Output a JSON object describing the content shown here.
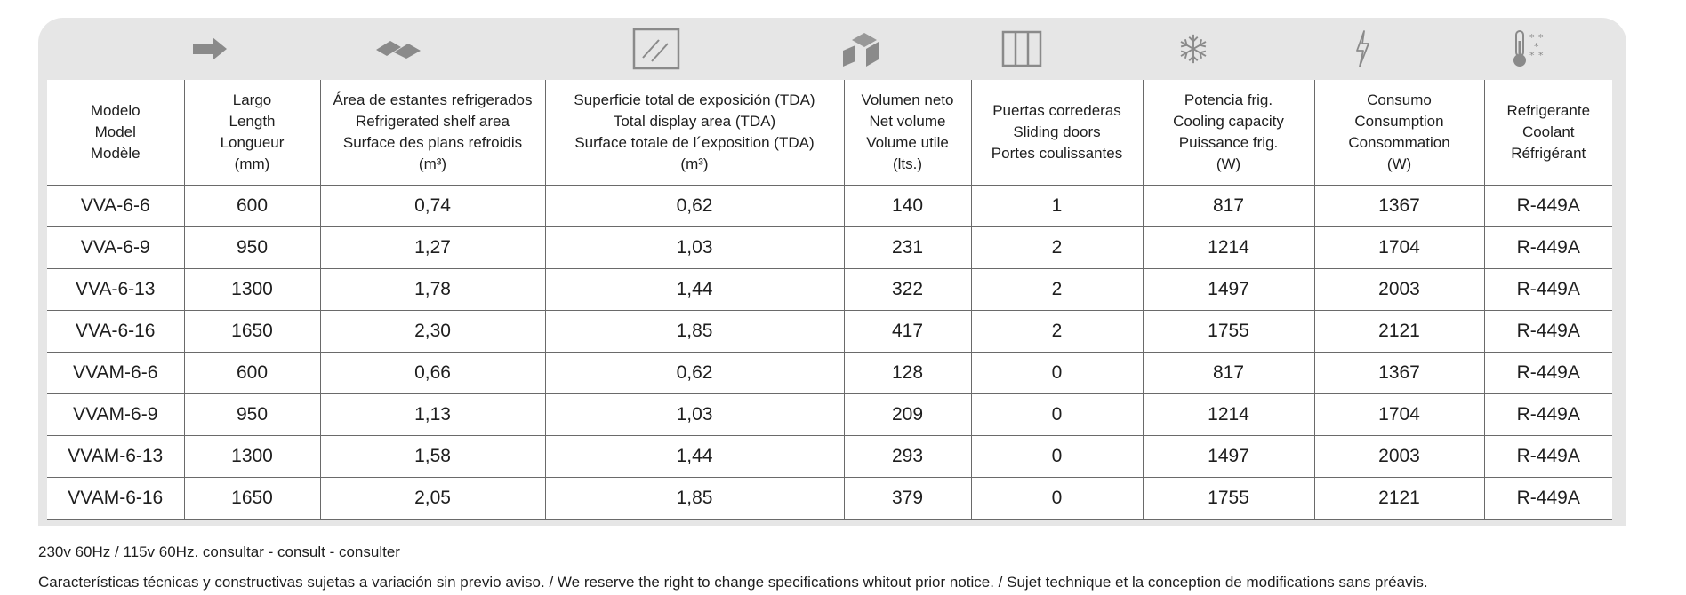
{
  "icons": [
    {
      "name": "arrow-right-icon"
    },
    {
      "name": "shelf-icon"
    },
    {
      "name": "display-window-icon"
    },
    {
      "name": "cube-volume-icon"
    },
    {
      "name": "sliding-doors-icon"
    },
    {
      "name": "snowflake-icon"
    },
    {
      "name": "lightning-icon"
    },
    {
      "name": "thermometer-icon"
    }
  ],
  "headers": [
    [
      "Modelo",
      "Model",
      "Modèle"
    ],
    [
      "Largo",
      "Length",
      "Longueur",
      "(mm)"
    ],
    [
      "Área de estantes refrigerados",
      "Refrigerated shelf area",
      "Surface des plans refroidis",
      "(m³)"
    ],
    [
      "Superficie total de exposición (TDA)",
      "Total display area (TDA)",
      "Surface totale de l´exposition (TDA)",
      "(m³)"
    ],
    [
      "Volumen neto",
      "Net volume",
      "Volume utile",
      "(lts.)"
    ],
    [
      "Puertas correderas",
      "Sliding doors",
      "Portes coulissantes"
    ],
    [
      "Potencia frig.",
      "Cooling capacity",
      "Puissance frig.",
      "(W)"
    ],
    [
      "Consumo",
      "Consumption",
      "Consommation",
      "(W)"
    ],
    [
      "Refrigerante",
      "Coolant",
      "Réfrigérant"
    ]
  ],
  "rows": [
    [
      "VVA-6-6",
      "600",
      "0,74",
      "0,62",
      "140",
      "1",
      "817",
      "1367",
      "R-449A"
    ],
    [
      "VVA-6-9",
      "950",
      "1,27",
      "1,03",
      "231",
      "2",
      "1214",
      "1704",
      "R-449A"
    ],
    [
      "VVA-6-13",
      "1300",
      "1,78",
      "1,44",
      "322",
      "2",
      "1497",
      "2003",
      "R-449A"
    ],
    [
      "VVA-6-16",
      "1650",
      "2,30",
      "1,85",
      "417",
      "2",
      "1755",
      "2121",
      "R-449A"
    ],
    [
      "VVAM-6-6",
      "600",
      "0,66",
      "0,62",
      "128",
      "0",
      "817",
      "1367",
      "R-449A"
    ],
    [
      "VVAM-6-9",
      "950",
      "1,13",
      "1,03",
      "209",
      "0",
      "1214",
      "1704",
      "R-449A"
    ],
    [
      "VVAM-6-13",
      "1300",
      "1,58",
      "1,44",
      "293",
      "0",
      "1497",
      "2003",
      "R-449A"
    ],
    [
      "VVAM-6-16",
      "1650",
      "2,05",
      "1,85",
      "379",
      "0",
      "1755",
      "2121",
      "R-449A"
    ]
  ],
  "notes": {
    "voltage": "230v 60Hz / 115v 60Hz. consultar - consult - consulter",
    "disclaimer": "Características técnicas y constructivas sujetas a variación sin previo aviso. / We reserve the right to change specifications whitout prior notice. / Sujet technique et la conception de modifications sans préavis."
  },
  "colors": {
    "panel": "#e6e6e6",
    "icon": "#8a8a8a",
    "rule": "#6a6a6a"
  }
}
